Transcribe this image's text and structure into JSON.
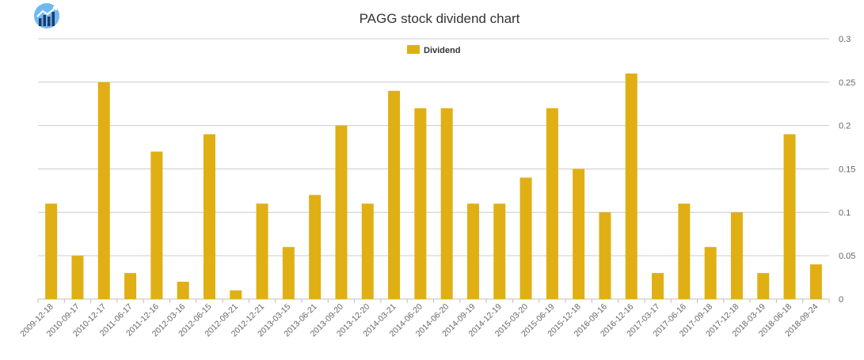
{
  "chart_data": {
    "type": "bar",
    "title": "PAGG stock dividend chart",
    "xlabel": "",
    "ylabel": "",
    "categories": [
      "2009-12-18",
      "2010-09-17",
      "2010-12-17",
      "2011-06-17",
      "2011-12-16",
      "2012-03-16",
      "2012-06-15",
      "2012-09-21",
      "2012-12-21",
      "2013-03-15",
      "2013-06-21",
      "2013-09-20",
      "2013-12-20",
      "2014-03-21",
      "2014-06-20",
      "2014-06-20",
      "2014-09-19",
      "2014-12-19",
      "2015-03-20",
      "2015-06-19",
      "2015-12-18",
      "2016-09-16",
      "2016-12-16",
      "2017-03-17",
      "2017-06-16",
      "2017-09-18",
      "2017-12-18",
      "2018-03-19",
      "2018-06-18",
      "2018-09-24"
    ],
    "series": [
      {
        "name": "Dividend",
        "color": "#e0af14",
        "values": [
          0.11,
          0.05,
          0.25,
          0.03,
          0.17,
          0.02,
          0.19,
          0.01,
          0.11,
          0.06,
          0.12,
          0.2,
          0.11,
          0.24,
          0.22,
          0.22,
          0.11,
          0.11,
          0.14,
          0.22,
          0.15,
          0.1,
          0.26,
          0.03,
          0.11,
          0.06,
          0.1,
          0.03,
          0.19,
          0.04
        ]
      }
    ],
    "ylim": [
      0,
      0.3
    ],
    "yticks": [
      "0",
      "0.05",
      "0.1",
      "0.15",
      "0.2",
      "0.25",
      "0.3"
    ],
    "y_axis_position": "right",
    "grid": true,
    "legend_position": "top-center"
  },
  "logo": {
    "name": "bar-chart-logo-icon"
  }
}
